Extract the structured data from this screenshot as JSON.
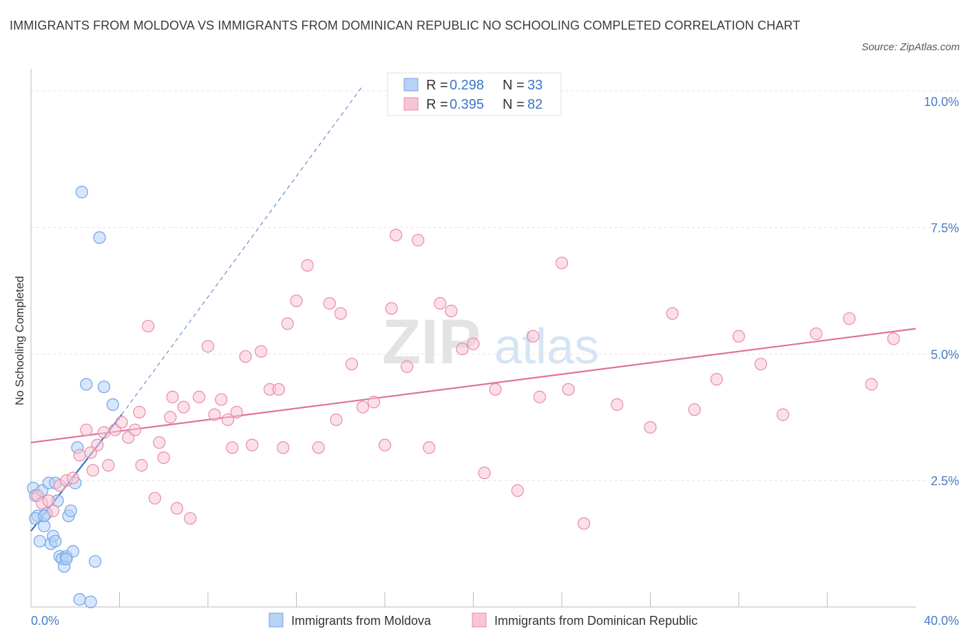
{
  "title": "IMMIGRANTS FROM MOLDOVA VS IMMIGRANTS FROM DOMINICAN REPUBLIC NO SCHOOLING COMPLETED CORRELATION CHART",
  "source": "Source: ZipAtlas.com",
  "watermark": {
    "zip": "ZIP",
    "atlas": "atlas"
  },
  "legend": {
    "rows": [
      {
        "r_label": "R =",
        "r_value": "0.298",
        "n_label": "N =",
        "n_value": "33"
      },
      {
        "r_label": "R =",
        "r_value": "0.395",
        "n_label": "N =",
        "n_value": "82"
      }
    ]
  },
  "chart_data": {
    "type": "scatter",
    "title": "IMMIGRANTS FROM MOLDOVA VS IMMIGRANTS FROM DOMINICAN REPUBLIC NO SCHOOLING COMPLETED CORRELATION CHART",
    "ylabel": "No Schooling Completed",
    "xlabel": "",
    "xlim": [
      0,
      40
    ],
    "ylim": [
      0,
      10.5
    ],
    "x_tick_labels": [
      "0.0%",
      "40.0%"
    ],
    "y_ticks": [
      2.5,
      5.0,
      7.5,
      10.0
    ],
    "y_tick_labels": [
      "2.5%",
      "5.0%",
      "7.5%",
      "10.0%"
    ],
    "grid": true,
    "legend_placement": "top-center",
    "series": [
      {
        "name": "Immigrants from Moldova",
        "color": "#6fa3e8",
        "fill": "#b7d2f5",
        "R": 0.298,
        "N": 33,
        "trend": {
          "x0": 0.0,
          "y0": 1.5,
          "x1": 4.1,
          "y1": 3.8,
          "dashed_to": [
            15.0,
            10.3
          ]
        },
        "x": [
          0.1,
          0.2,
          0.3,
          0.5,
          0.6,
          0.7,
          0.8,
          0.9,
          1.0,
          1.1,
          1.2,
          1.3,
          1.4,
          1.5,
          1.6,
          1.7,
          1.8,
          1.9,
          2.0,
          2.1,
          2.2,
          2.3,
          2.5,
          2.7,
          2.9,
          3.1,
          3.3,
          3.7,
          0.2,
          0.4,
          0.6,
          1.1,
          1.6
        ],
        "y": [
          2.35,
          2.2,
          1.8,
          2.3,
          1.6,
          1.85,
          2.45,
          1.25,
          1.4,
          1.3,
          2.1,
          1.0,
          0.95,
          0.8,
          1.0,
          1.8,
          1.9,
          1.1,
          2.45,
          3.15,
          0.15,
          8.2,
          4.4,
          0.1,
          0.9,
          7.3,
          4.35,
          4.0,
          1.75,
          1.3,
          1.8,
          2.45,
          0.95
        ]
      },
      {
        "name": "Immigrants from Dominican Republic",
        "color": "#e88aa8",
        "fill": "#f7c6d6",
        "R": 0.395,
        "N": 82,
        "trend": {
          "x0": 0.0,
          "y0": 3.25,
          "x1": 40.0,
          "y1": 5.5
        },
        "x": [
          0.3,
          0.5,
          0.8,
          1.0,
          1.3,
          1.6,
          1.9,
          2.2,
          2.5,
          2.8,
          3.0,
          3.3,
          3.5,
          3.8,
          4.1,
          4.4,
          4.7,
          5.0,
          5.3,
          5.6,
          5.8,
          6.0,
          6.3,
          6.6,
          6.9,
          7.2,
          7.6,
          8.0,
          8.3,
          8.6,
          8.9,
          9.3,
          9.7,
          10.0,
          10.4,
          10.8,
          11.2,
          11.6,
          12.0,
          12.5,
          13.0,
          13.5,
          14.0,
          14.5,
          15.0,
          15.5,
          16.0,
          16.5,
          17.0,
          17.5,
          18.0,
          18.5,
          19.0,
          19.5,
          20.0,
          20.5,
          21.0,
          22.0,
          23.0,
          24.0,
          25.0,
          26.5,
          28.0,
          29.0,
          30.0,
          31.0,
          32.0,
          33.0,
          34.0,
          35.5,
          37.0,
          38.0,
          39.0,
          13.8,
          9.1,
          6.4,
          4.9,
          16.3,
          22.7,
          24.3,
          2.7,
          11.4
        ],
        "y": [
          2.2,
          2.05,
          2.1,
          1.9,
          2.4,
          2.5,
          2.55,
          3.0,
          3.5,
          2.7,
          3.2,
          3.45,
          2.8,
          3.5,
          3.65,
          3.35,
          3.5,
          2.8,
          5.55,
          2.15,
          3.25,
          2.95,
          3.75,
          1.95,
          3.95,
          1.75,
          4.15,
          5.15,
          3.8,
          4.1,
          3.7,
          3.85,
          4.95,
          3.2,
          5.05,
          4.3,
          4.3,
          5.6,
          6.05,
          6.75,
          3.15,
          6.0,
          5.8,
          4.8,
          3.95,
          4.05,
          3.2,
          7.35,
          4.75,
          7.25,
          3.15,
          6.0,
          5.85,
          5.1,
          5.2,
          2.65,
          4.3,
          2.3,
          4.15,
          6.8,
          1.65,
          4.0,
          3.55,
          5.8,
          3.9,
          4.5,
          5.35,
          4.8,
          3.8,
          5.4,
          5.7,
          4.4,
          5.3,
          3.7,
          3.15,
          4.15,
          3.85,
          5.9,
          5.35,
          4.3,
          3.05,
          3.15
        ]
      }
    ]
  },
  "bottom_legend": [
    {
      "label": "Immigrants from Moldova"
    },
    {
      "label": "Immigrants from Dominican Republic"
    }
  ]
}
